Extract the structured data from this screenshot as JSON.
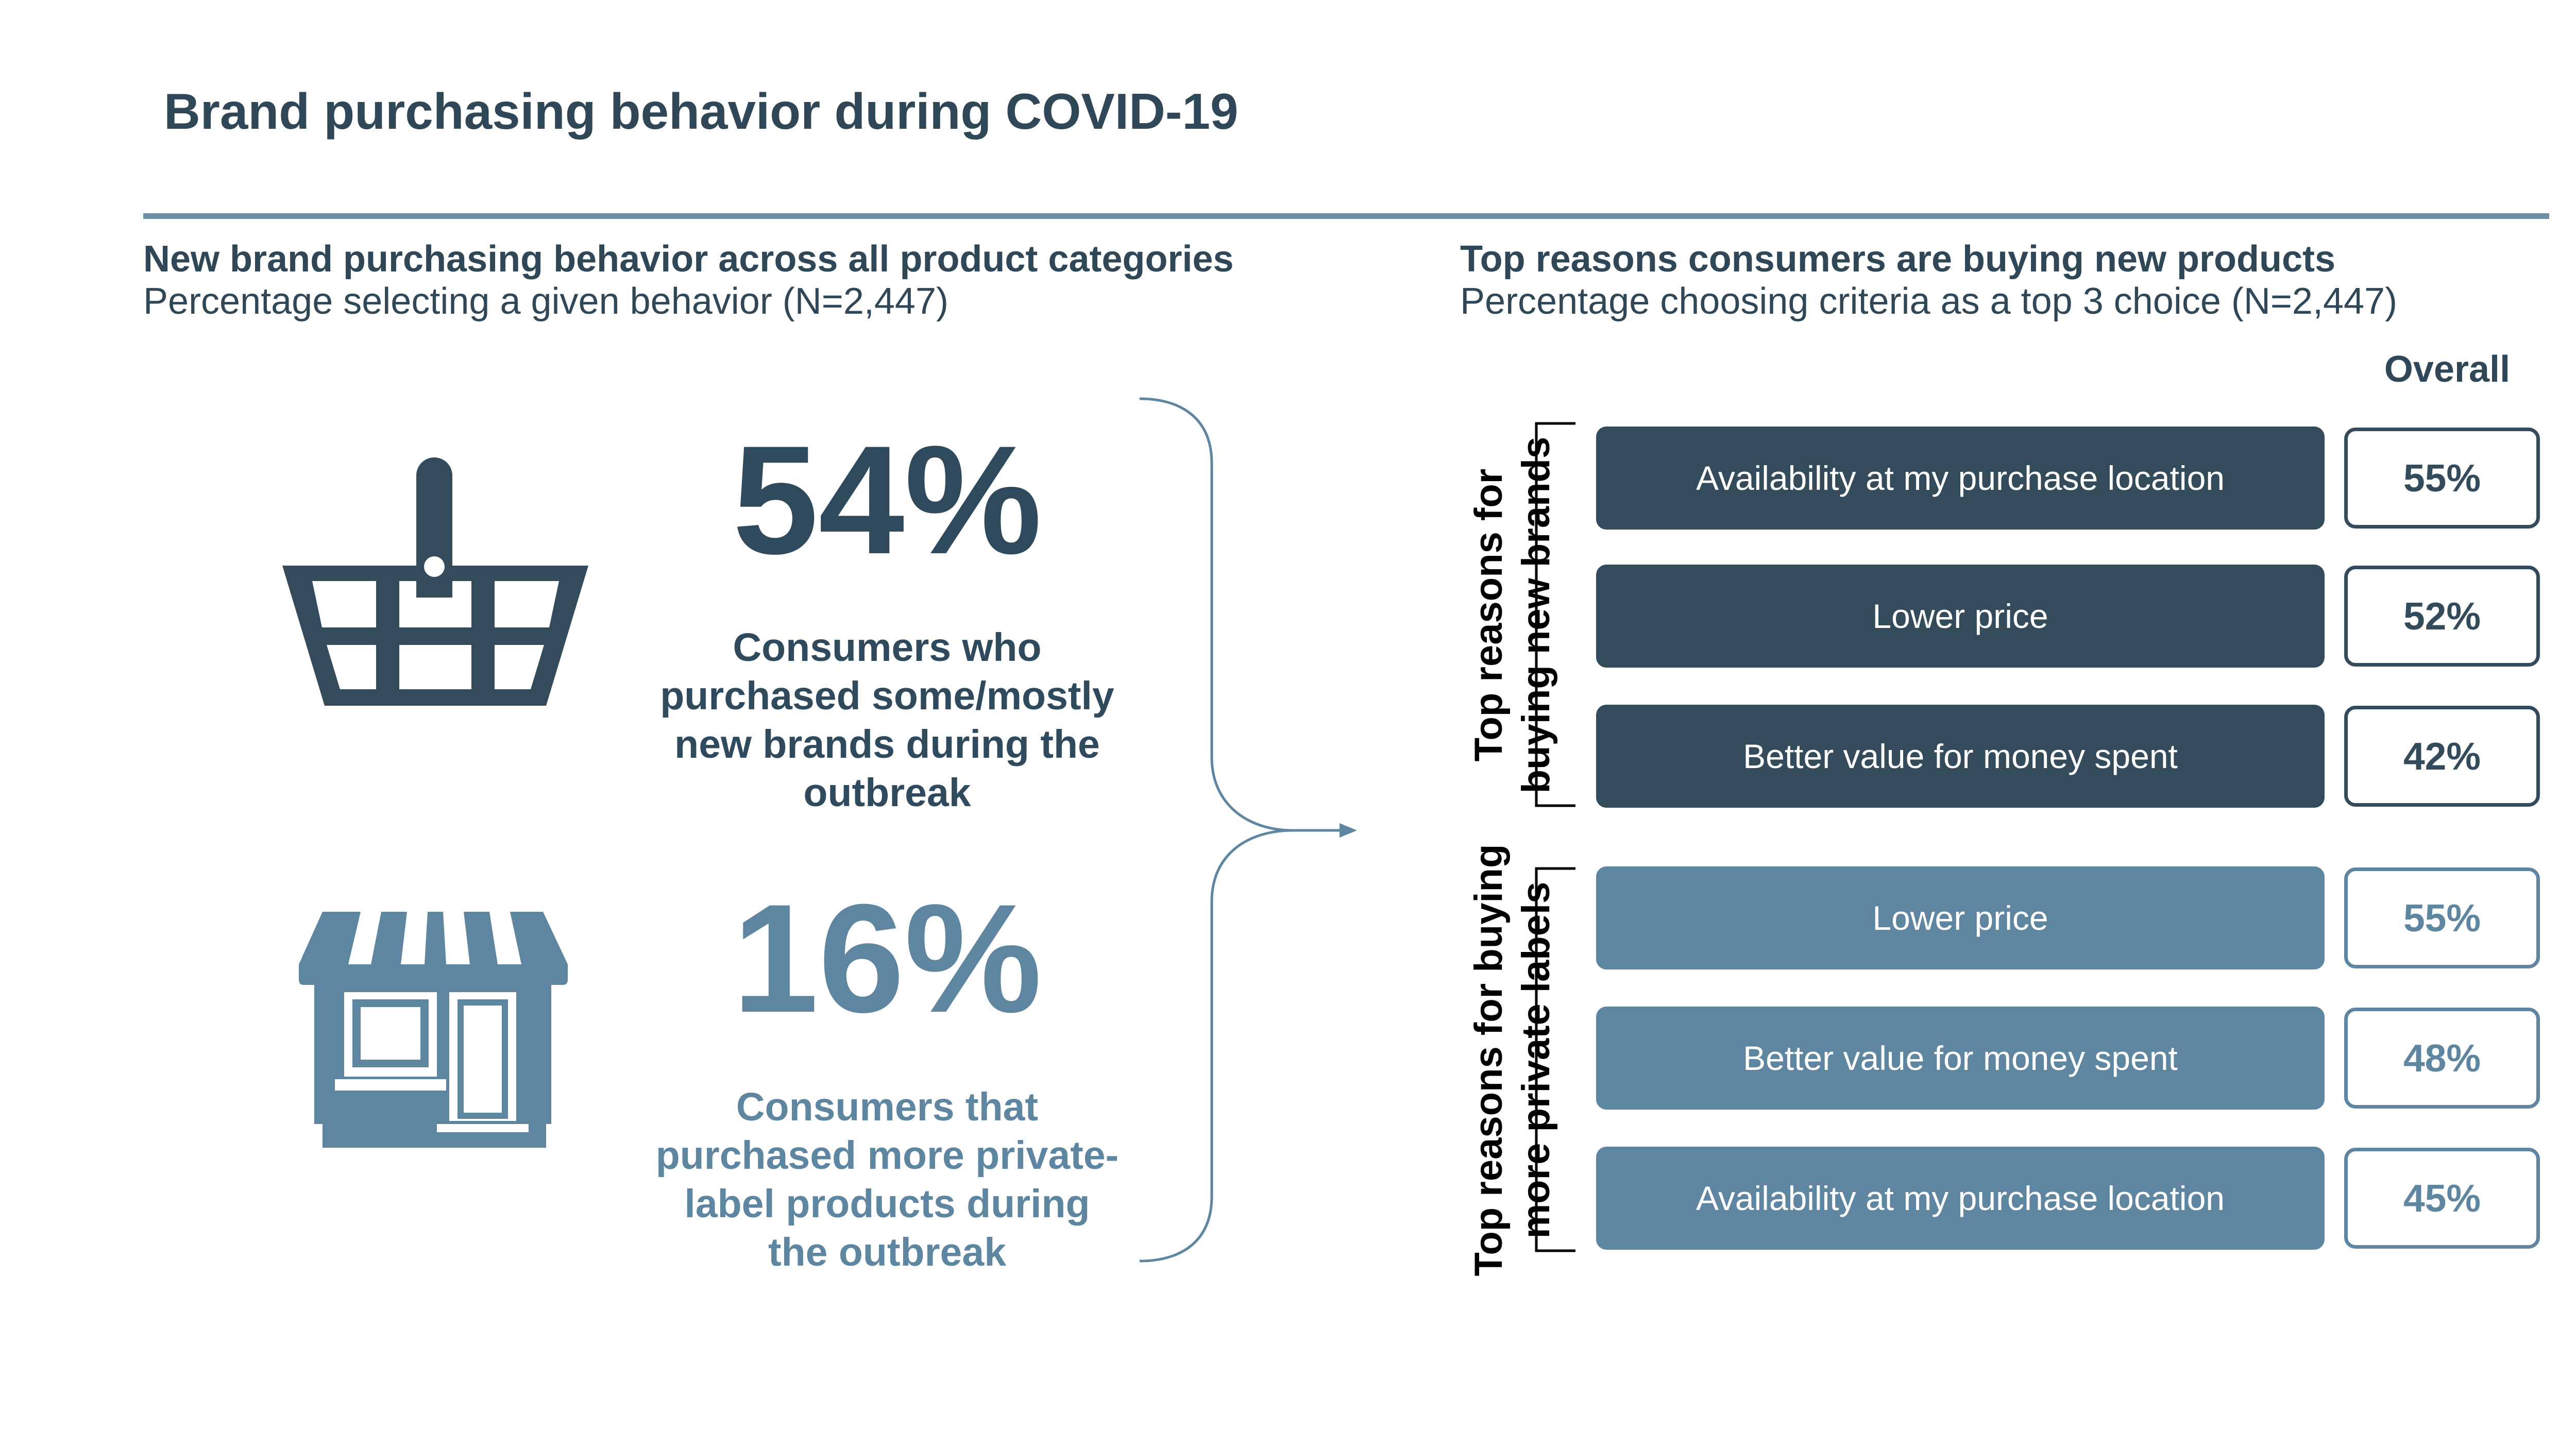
{
  "title": "Brand purchasing behavior during COVID-19",
  "left_panel": {
    "heading": "New brand purchasing behavior across all product categories",
    "subheading": "Percentage selecting a given behavior (N=2,447)",
    "stats": [
      {
        "value": "54%",
        "caption_lines": [
          "Consumers who",
          "purchased some/mostly",
          "new brands during the",
          "outbreak"
        ],
        "icon": "shopping-basket-icon",
        "color": "#2f4a5c"
      },
      {
        "value": "16%",
        "caption_lines": [
          "Consumers that",
          "purchased more private-",
          "label products during",
          "the outbreak"
        ],
        "icon": "storefront-icon",
        "color": "#5f86a0"
      }
    ]
  },
  "right_panel": {
    "heading": "Top reasons consumers are buying new products",
    "subheading": "Percentage choosing criteria as a top 3 choice (N=2,447)",
    "column_header": "Overall",
    "group_labels": [
      {
        "lines": [
          "Top reasons for",
          "buying new brands"
        ]
      },
      {
        "lines": [
          "Top reasons for buying",
          "more private labels"
        ]
      }
    ]
  },
  "chart_data": {
    "type": "table",
    "title": "Top reasons consumers are buying new products",
    "column": "Overall",
    "groups": [
      {
        "name": "Top reasons for buying new brands",
        "color": "#344b5c",
        "rows": [
          {
            "label": "Availability at my purchase location",
            "value": 55,
            "display": "55%"
          },
          {
            "label": "Lower price",
            "value": 52,
            "display": "52%"
          },
          {
            "label": "Better value for money spent",
            "value": 42,
            "display": "42%"
          }
        ]
      },
      {
        "name": "Top reasons for buying more private labels",
        "color": "#5f86a0",
        "rows": [
          {
            "label": "Lower price",
            "value": 55,
            "display": "55%"
          },
          {
            "label": "Better value for money spent",
            "value": 48,
            "display": "48%"
          },
          {
            "label": "Availability at my purchase location",
            "value": 45,
            "display": "45%"
          }
        ]
      }
    ]
  }
}
